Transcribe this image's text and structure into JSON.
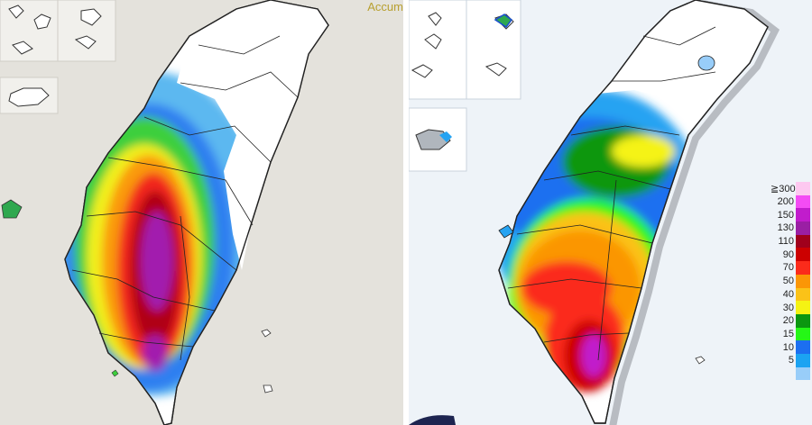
{
  "left_map": {
    "title_fragment": "Accum"
  },
  "right_map": {
    "legend": {
      "levels": [
        {
          "label": "≧300",
          "color": "#fdc8f0"
        },
        {
          "label": "200",
          "color": "#f44cf4"
        },
        {
          "label": "150",
          "color": "#c11ccc"
        },
        {
          "label": "130",
          "color": "#9a1fa4"
        },
        {
          "label": "110",
          "color": "#a0001c"
        },
        {
          "label": "90",
          "color": "#cc0000"
        },
        {
          "label": "70",
          "color": "#fb2b1b"
        },
        {
          "label": "50",
          "color": "#fb9606"
        },
        {
          "label": "40",
          "color": "#fbc218"
        },
        {
          "label": "30",
          "color": "#f5f313"
        },
        {
          "label": "20",
          "color": "#0b9710"
        },
        {
          "label": "15",
          "color": "#25f716"
        },
        {
          "label": "10",
          "color": "#1c6ff0"
        },
        {
          "label": "5",
          "color": "#1ba3f2"
        },
        {
          "label": "",
          "color": "#98cdf9"
        }
      ]
    }
  }
}
